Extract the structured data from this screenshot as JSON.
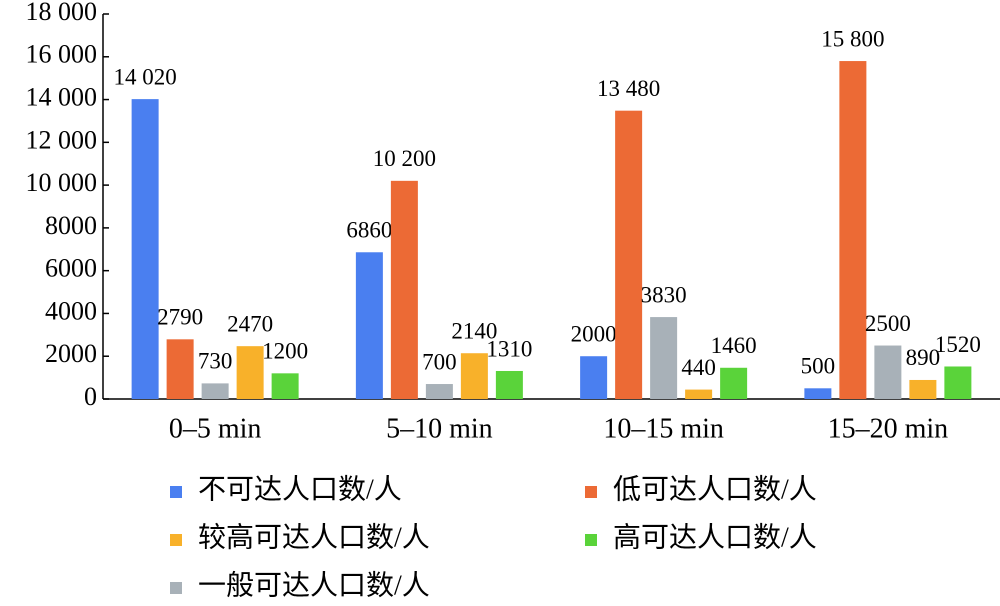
{
  "chart_data": {
    "type": "bar",
    "categories": [
      "0–5 min",
      "5–10 min",
      "10–15 min",
      "15–20 min"
    ],
    "series": [
      {
        "name": "不可达人口数/人",
        "color": "#4a7ff0",
        "values": [
          14020,
          6860,
          2000,
          500
        ],
        "value_labels": [
          "14 020",
          "6860",
          "2000",
          "500"
        ]
      },
      {
        "name": "低可达人口数/人",
        "color": "#ec6a35",
        "values": [
          2790,
          10200,
          13480,
          15800
        ],
        "value_labels": [
          "2790",
          "10 200",
          "13 480",
          "15 800"
        ]
      },
      {
        "name": "一般可达人口数/人",
        "color": "#a8b1b8",
        "values": [
          730,
          700,
          3830,
          2500
        ]
      },
      {
        "name": "较高可达人口数/人",
        "color": "#f8b12a",
        "values": [
          2470,
          2140,
          440,
          890
        ]
      },
      {
        "name": "高可达人口数/人",
        "color": "#5ad33a",
        "values": [
          1200,
          1310,
          1460,
          1520
        ]
      }
    ],
    "ylim": [
      0,
      18000
    ],
    "yticks": [
      0,
      2000,
      4000,
      6000,
      8000,
      {
        "value": 10000,
        "label": "10 000"
      },
      {
        "value": 12000,
        "label": "12 000"
      },
      {
        "value": 14000,
        "label": "14 000"
      },
      {
        "value": 16000,
        "label": "16 000"
      },
      {
        "value": 18000,
        "label": "18 000"
      }
    ]
  }
}
